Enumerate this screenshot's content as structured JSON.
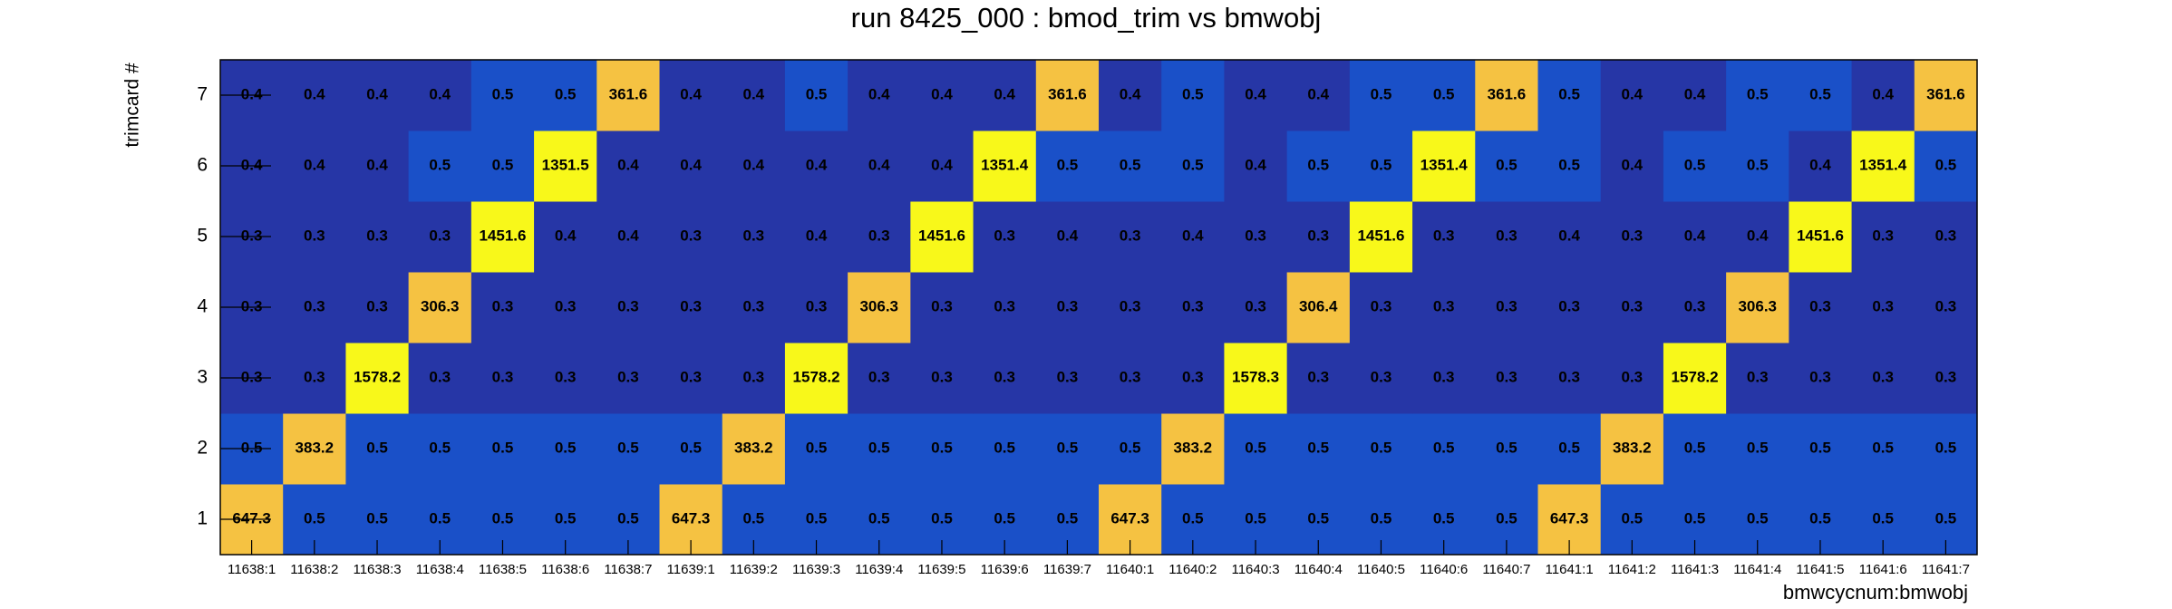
{
  "chart_data": {
    "type": "heatmap",
    "title": "run 8425_000 : bmod_trim vs bmwobj",
    "x_label": "bmwcycnum:bmwobj",
    "y_label": "trimcard #",
    "categories": [
      "11638:1",
      "11638:2",
      "11638:3",
      "11638:4",
      "11638:5",
      "11638:6",
      "11638:7",
      "11639:1",
      "11639:2",
      "11639:3",
      "11639:4",
      "11639:5",
      "11639:6",
      "11639:7",
      "11640:1",
      "11640:2",
      "11640:3",
      "11640:4",
      "11640:5",
      "11640:6",
      "11640:7",
      "11641:1",
      "11641:2",
      "11641:3",
      "11641:4",
      "11641:5",
      "11641:6",
      "11641:7"
    ],
    "y_categories": [
      1,
      2,
      3,
      4,
      5,
      6,
      7
    ],
    "z": [
      [
        647.3,
        0.5,
        0.5,
        0.5,
        0.5,
        0.5,
        0.5,
        647.3,
        0.5,
        0.5,
        0.5,
        0.5,
        0.5,
        0.5,
        647.3,
        0.5,
        0.5,
        0.5,
        0.5,
        0.5,
        0.5,
        647.3,
        0.5,
        0.5,
        0.5,
        0.5,
        0.5,
        0.5
      ],
      [
        0.5,
        383.2,
        0.5,
        0.5,
        0.5,
        0.5,
        0.5,
        0.5,
        383.2,
        0.5,
        0.5,
        0.5,
        0.5,
        0.5,
        0.5,
        383.2,
        0.5,
        0.5,
        0.5,
        0.5,
        0.5,
        0.5,
        383.2,
        0.5,
        0.5,
        0.5,
        0.5,
        0.5
      ],
      [
        0.3,
        0.3,
        1578.2,
        0.3,
        0.3,
        0.3,
        0.3,
        0.3,
        0.3,
        1578.2,
        0.3,
        0.3,
        0.3,
        0.3,
        0.3,
        0.3,
        1578.3,
        0.3,
        0.3,
        0.3,
        0.3,
        0.3,
        0.3,
        1578.2,
        0.3,
        0.3,
        0.3,
        0.3
      ],
      [
        0.3,
        0.3,
        0.3,
        306.3,
        0.3,
        0.3,
        0.3,
        0.3,
        0.3,
        0.3,
        306.3,
        0.3,
        0.3,
        0.3,
        0.3,
        0.3,
        0.3,
        306.4,
        0.3,
        0.3,
        0.3,
        0.3,
        0.3,
        0.3,
        306.3,
        0.3,
        0.3,
        0.3
      ],
      [
        0.3,
        0.3,
        0.3,
        0.3,
        1451.6,
        0.4,
        0.4,
        0.3,
        0.3,
        0.4,
        0.3,
        1451.6,
        0.3,
        0.4,
        0.3,
        0.4,
        0.3,
        0.3,
        1451.6,
        0.3,
        0.3,
        0.4,
        0.3,
        0.4,
        0.4,
        1451.6,
        0.3,
        0.3
      ],
      [
        0.4,
        0.4,
        0.4,
        0.5,
        0.5,
        1351.5,
        0.4,
        0.4,
        0.4,
        0.4,
        0.4,
        0.4,
        1351.4,
        0.5,
        0.5,
        0.5,
        0.4,
        0.5,
        0.5,
        1351.4,
        0.5,
        0.5,
        0.4,
        0.5,
        0.5,
        0.4,
        1351.4,
        0.5
      ],
      [
        0.4,
        0.4,
        0.4,
        0.4,
        0.5,
        0.5,
        361.6,
        0.4,
        0.4,
        0.5,
        0.4,
        0.4,
        0.4,
        361.6,
        0.4,
        0.5,
        0.4,
        0.4,
        0.5,
        0.5,
        361.6,
        0.5,
        0.4,
        0.4,
        0.5,
        0.5,
        0.4,
        361.6
      ]
    ],
    "z_log": true,
    "palette": [
      "#2636a6",
      "#1a50c8",
      "#1a5fd0",
      "#1a70cc",
      "#1d82c0",
      "#2593b0",
      "#35a39c",
      "#4ab088",
      "#62ba72",
      "#7cc25e",
      "#98c74c",
      "#b2c93e",
      "#c8c634",
      "#dac02e",
      "#e8b930",
      "#f0b83a",
      "#f5c242",
      "#f5c242",
      "#f7c83c",
      "#f8f81a"
    ]
  }
}
